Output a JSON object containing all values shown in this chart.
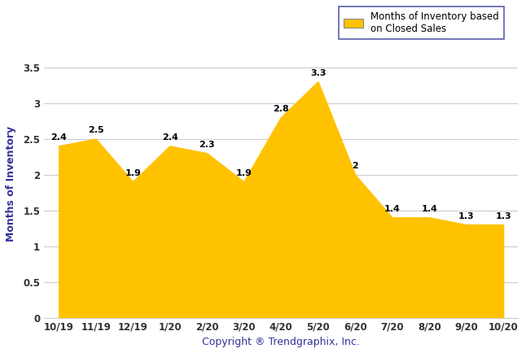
{
  "x_labels": [
    "10/19",
    "11/19",
    "12/19",
    "1/20",
    "2/20",
    "3/20",
    "4/20",
    "5/20",
    "6/20",
    "7/20",
    "8/20",
    "9/20",
    "10/20"
  ],
  "values": [
    2.4,
    2.5,
    1.9,
    2.4,
    2.3,
    1.9,
    2.8,
    3.3,
    2.0,
    1.4,
    1.4,
    1.3,
    1.3
  ],
  "fill_color": "#FFC200",
  "line_color": "#FFC200",
  "ylabel": "Months of Inventory",
  "xlabel": "Copyright ® Trendgraphix, Inc.",
  "legend_label": "Months of Inventory based\non Closed Sales",
  "ylim": [
    0,
    3.75
  ],
  "yticks": [
    0,
    0.5,
    1.0,
    1.5,
    2.0,
    2.5,
    3.0,
    3.5
  ],
  "ytick_labels": [
    "0",
    "0.5",
    "1",
    "1.5",
    "2",
    "2.5",
    "3",
    "3.5"
  ],
  "grid_color": "#cccccc",
  "background_color": "#ffffff",
  "label_fontsize": 8.5,
  "axis_label_fontsize": 9,
  "annotation_fontsize": 8,
  "tick_color": "#333333",
  "ylabel_color": "#333399",
  "xlabel_color": "#333399"
}
